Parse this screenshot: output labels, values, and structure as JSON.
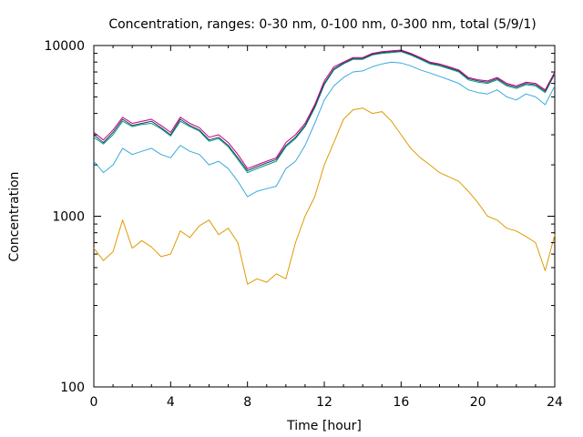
{
  "chart_data": {
    "type": "line",
    "title": "Concentration, ranges: 0-30 nm, 0-100 nm, 0-300 nm, total (5/9/1)",
    "xlabel": "Time [hour]",
    "ylabel": "Concentration",
    "xlim": [
      0,
      24
    ],
    "ylim": [
      100,
      10000
    ],
    "yscale": "log",
    "xticks": [
      0,
      4,
      8,
      12,
      16,
      20,
      24
    ],
    "yticks": [
      100,
      1000,
      10000
    ],
    "grid": false,
    "legend": "none",
    "series": [
      {
        "color": "#c8006e",
        "x": [
          0,
          0.5,
          1,
          1.5,
          2,
          2.5,
          3,
          3.5,
          4,
          4.5,
          5,
          5.5,
          6,
          6.5,
          7,
          7.5,
          8,
          8.5,
          9,
          9.5,
          10,
          10.5,
          11,
          11.5,
          12,
          12.5,
          13,
          13.5,
          14,
          14.5,
          15,
          15.5,
          16,
          16.5,
          17,
          17.5,
          18,
          18.5,
          19,
          19.5,
          20,
          20.5,
          21,
          21.5,
          22,
          22.5,
          23,
          23.5,
          24
        ],
        "values": [
          3100,
          2800,
          3200,
          3800,
          3500,
          3600,
          3700,
          3400,
          3100,
          3800,
          3500,
          3300,
          2900,
          3000,
          2700,
          2300,
          1900,
          2000,
          2100,
          2200,
          2700,
          3000,
          3500,
          4500,
          6200,
          7500,
          8000,
          8500,
          8500,
          9000,
          9200,
          9300,
          9400,
          9000,
          8500,
          8000,
          7800,
          7500,
          7200,
          6500,
          6300,
          6200,
          6500,
          6000,
          5800,
          6100,
          6000,
          5500,
          7000
        ]
      },
      {
        "color": "#1a3a8a",
        "x": [
          0,
          0.5,
          1,
          1.5,
          2,
          2.5,
          3,
          3.5,
          4,
          4.5,
          5,
          5.5,
          6,
          6.5,
          7,
          7.5,
          8,
          8.5,
          9,
          9.5,
          10,
          10.5,
          11,
          11.5,
          12,
          12.5,
          13,
          13.5,
          14,
          14.5,
          15,
          15.5,
          16,
          16.5,
          17,
          17.5,
          18,
          18.5,
          19,
          19.5,
          20,
          20.5,
          21,
          21.5,
          22,
          22.5,
          23,
          23.5,
          24
        ],
        "values": [
          3000,
          2700,
          3100,
          3700,
          3400,
          3500,
          3600,
          3300,
          3000,
          3700,
          3400,
          3200,
          2800,
          2900,
          2600,
          2200,
          1850,
          1950,
          2050,
          2150,
          2600,
          2900,
          3400,
          4400,
          6000,
          7300,
          7900,
          8400,
          8400,
          8900,
          9100,
          9200,
          9300,
          8900,
          8400,
          7900,
          7700,
          7400,
          7100,
          6400,
          6200,
          6100,
          6400,
          5900,
          5700,
          6000,
          5900,
          5400,
          6900
        ]
      },
      {
        "color": "#00a060",
        "x": [
          0,
          0.5,
          1,
          1.5,
          2,
          2.5,
          3,
          3.5,
          4,
          4.5,
          5,
          5.5,
          6,
          6.5,
          7,
          7.5,
          8,
          8.5,
          9,
          9.5,
          10,
          10.5,
          11,
          11.5,
          12,
          12.5,
          13,
          13.5,
          14,
          14.5,
          15,
          15.5,
          16,
          16.5,
          17,
          17.5,
          18,
          18.5,
          19,
          19.5,
          20,
          20.5,
          21,
          21.5,
          22,
          22.5,
          23,
          23.5,
          24
        ],
        "values": [
          2900,
          2650,
          3000,
          3600,
          3350,
          3450,
          3500,
          3250,
          2950,
          3600,
          3350,
          3150,
          2750,
          2850,
          2550,
          2150,
          1800,
          1900,
          2000,
          2100,
          2550,
          2850,
          3350,
          4300,
          5900,
          7200,
          7800,
          8300,
          8300,
          8800,
          9000,
          9100,
          9200,
          8800,
          8300,
          7800,
          7600,
          7300,
          7000,
          6300,
          6100,
          6000,
          6300,
          5800,
          5600,
          5900,
          5800,
          5300,
          6800
        ]
      },
      {
        "color": "#3aaadc",
        "x": [
          0,
          0.5,
          1,
          1.5,
          2,
          2.5,
          3,
          3.5,
          4,
          4.5,
          5,
          5.5,
          6,
          6.5,
          7,
          7.5,
          8,
          8.5,
          9,
          9.5,
          10,
          10.5,
          11,
          11.5,
          12,
          12.5,
          13,
          13.5,
          14,
          14.5,
          15,
          15.5,
          16,
          16.5,
          17,
          17.5,
          18,
          18.5,
          19,
          19.5,
          20,
          20.5,
          21,
          21.5,
          22,
          22.5,
          23,
          23.5,
          24
        ],
        "values": [
          2100,
          1800,
          2000,
          2500,
          2300,
          2400,
          2500,
          2300,
          2200,
          2600,
          2400,
          2300,
          2000,
          2100,
          1900,
          1600,
          1300,
          1400,
          1450,
          1500,
          1900,
          2100,
          2600,
          3500,
          4800,
          5800,
          6500,
          7000,
          7100,
          7500,
          7800,
          8000,
          7900,
          7600,
          7200,
          6900,
          6600,
          6300,
          6000,
          5500,
          5300,
          5200,
          5500,
          5000,
          4800,
          5200,
          5000,
          4500,
          5800
        ]
      },
      {
        "color": "#e09a00",
        "x": [
          0,
          0.5,
          1,
          1.5,
          2,
          2.5,
          3,
          3.5,
          4,
          4.5,
          5,
          5.5,
          6,
          6.5,
          7,
          7.5,
          8,
          8.5,
          9,
          9.5,
          10,
          10.5,
          11,
          11.5,
          12,
          12.5,
          13,
          13.5,
          14,
          14.5,
          15,
          15.5,
          16,
          16.5,
          17,
          17.5,
          18,
          18.5,
          19,
          19.5,
          20,
          20.5,
          21,
          21.5,
          22,
          22.5,
          23,
          23.5,
          24
        ],
        "values": [
          650,
          550,
          620,
          950,
          650,
          720,
          660,
          580,
          600,
          820,
          750,
          880,
          950,
          780,
          850,
          700,
          400,
          430,
          410,
          460,
          430,
          700,
          1000,
          1300,
          2000,
          2700,
          3700,
          4200,
          4300,
          4000,
          4100,
          3600,
          3000,
          2500,
          2200,
          2000,
          1800,
          1700,
          1600,
          1400,
          1200,
          1000,
          950,
          850,
          820,
          760,
          700,
          480,
          780
        ]
      }
    ]
  }
}
